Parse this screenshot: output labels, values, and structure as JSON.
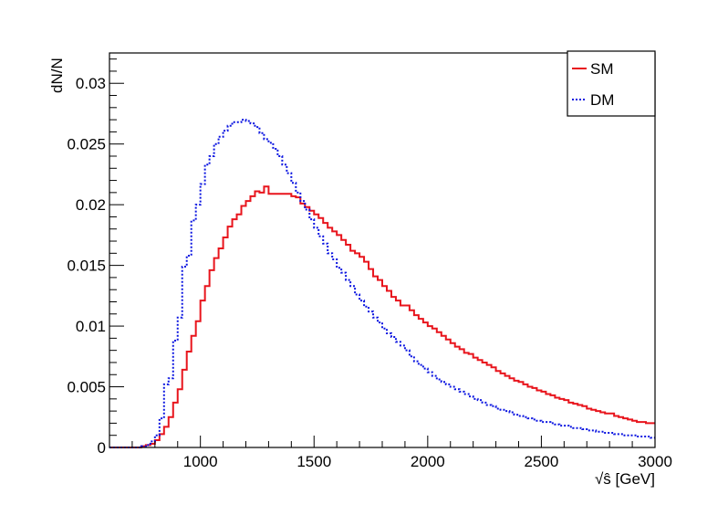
{
  "chart_data": {
    "type": "line",
    "style": "step-histogram",
    "title": "",
    "xlabel": "√ŝ [GeV]",
    "ylabel": "dN/N",
    "xlim": [
      600,
      3000
    ],
    "ylim": [
      0,
      0.0325
    ],
    "x_ticks": [
      1000,
      1500,
      2000,
      2500,
      3000
    ],
    "x_tick_labels": [
      "1000",
      "1500",
      "2000",
      "2500",
      "3000"
    ],
    "y_ticks": [
      0,
      0.005,
      0.01,
      0.015,
      0.02,
      0.025,
      0.03
    ],
    "y_tick_labels": [
      "0",
      "0.005",
      "0.01",
      "0.015",
      "0.02",
      "0.025",
      "0.03"
    ],
    "grid": false,
    "legend_position": "top-right",
    "bin_width": 20,
    "x_start": 600,
    "series": [
      {
        "name": "SM",
        "color": "#e8141c",
        "dash": "solid",
        "values": [
          0,
          0,
          0,
          0,
          0,
          0,
          0,
          0.0001,
          0.0002,
          0.0003,
          0.0006,
          0.0011,
          0.0017,
          0.0025,
          0.0037,
          0.0048,
          0.0064,
          0.0079,
          0.0092,
          0.0104,
          0.0121,
          0.0133,
          0.0146,
          0.0156,
          0.0164,
          0.0173,
          0.0182,
          0.0188,
          0.0192,
          0.0199,
          0.0203,
          0.0207,
          0.0211,
          0.021,
          0.0215,
          0.0209,
          0.0209,
          0.0209,
          0.0209,
          0.0209,
          0.0207,
          0.0206,
          0.0201,
          0.0198,
          0.0195,
          0.0192,
          0.0189,
          0.0185,
          0.0181,
          0.0178,
          0.0175,
          0.0171,
          0.0167,
          0.0162,
          0.016,
          0.0157,
          0.0153,
          0.0147,
          0.0141,
          0.0138,
          0.0133,
          0.0129,
          0.0124,
          0.0121,
          0.0117,
          0.0117,
          0.0113,
          0.0109,
          0.0106,
          0.0103,
          0.01,
          0.0098,
          0.0095,
          0.0092,
          0.0089,
          0.0086,
          0.0083,
          0.0081,
          0.0078,
          0.0077,
          0.0074,
          0.0072,
          0.007,
          0.0068,
          0.0066,
          0.0063,
          0.0061,
          0.0059,
          0.0057,
          0.0055,
          0.0054,
          0.0052,
          0.005,
          0.0049,
          0.0047,
          0.0046,
          0.0044,
          0.0043,
          0.0041,
          0.004,
          0.0039,
          0.0037,
          0.0036,
          0.0035,
          0.0034,
          0.0032,
          0.0031,
          0.003,
          0.0029,
          0.0028,
          0.0028,
          0.0026,
          0.0025,
          0.0024,
          0.0023,
          0.0022,
          0.0021,
          0.0021,
          0.002,
          0.002
        ]
      },
      {
        "name": "DM",
        "color": "#0a14e0",
        "dash": "dotted",
        "values": [
          0,
          0,
          0,
          0,
          0,
          0,
          0,
          0.0001,
          0.0002,
          0.0005,
          0.001,
          0.0024,
          0.0052,
          0.0057,
          0.0088,
          0.0107,
          0.0149,
          0.0158,
          0.0187,
          0.02,
          0.0217,
          0.0233,
          0.024,
          0.025,
          0.0256,
          0.0261,
          0.0265,
          0.0268,
          0.0268,
          0.027,
          0.0269,
          0.0267,
          0.0264,
          0.0259,
          0.0254,
          0.0251,
          0.0246,
          0.024,
          0.0233,
          0.0226,
          0.0218,
          0.021,
          0.0203,
          0.0196,
          0.0188,
          0.0181,
          0.0174,
          0.0168,
          0.016,
          0.0155,
          0.0148,
          0.0144,
          0.0138,
          0.0133,
          0.0126,
          0.0121,
          0.0116,
          0.0112,
          0.0107,
          0.0103,
          0.0098,
          0.0094,
          0.0091,
          0.0087,
          0.0084,
          0.008,
          0.0075,
          0.0071,
          0.0068,
          0.0065,
          0.0062,
          0.0059,
          0.0056,
          0.0054,
          0.0052,
          0.005,
          0.0048,
          0.0046,
          0.0044,
          0.0042,
          0.004,
          0.0039,
          0.0037,
          0.0035,
          0.0034,
          0.0032,
          0.0031,
          0.003,
          0.0029,
          0.0027,
          0.0026,
          0.0025,
          0.0024,
          0.0023,
          0.0022,
          0.0021,
          0.0021,
          0.002,
          0.0019,
          0.0018,
          0.0018,
          0.0017,
          0.0016,
          0.0016,
          0.0015,
          0.0014,
          0.0014,
          0.0013,
          0.0013,
          0.0012,
          0.0012,
          0.0011,
          0.0011,
          0.001,
          0.001,
          0.001,
          0.0009,
          0.0009,
          0.0009,
          0.0008
        ]
      }
    ]
  }
}
